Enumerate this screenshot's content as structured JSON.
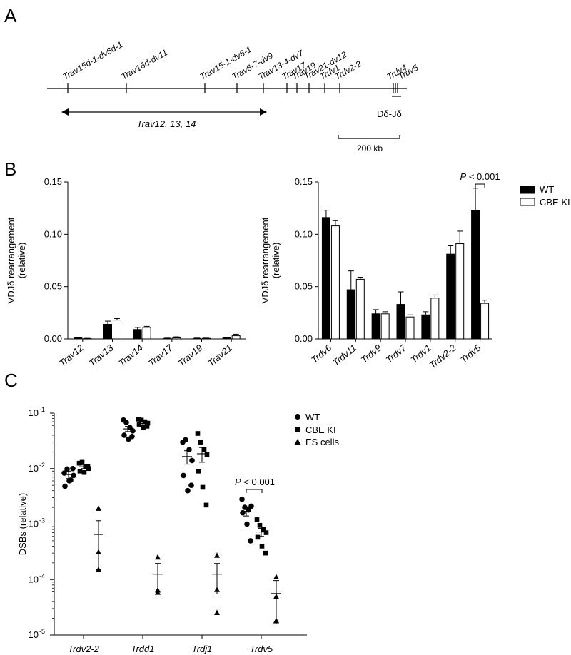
{
  "panel_labels": {
    "a": "A",
    "b": "B",
    "c": "C"
  },
  "panel_a": {
    "genes": [
      "Trav15d-1-dv6d-1",
      "Trav16d-dv11",
      "Trav15-1-dv6-1",
      "Trav6-7-dv9",
      "Trav13-4-dv7",
      "Trav17",
      "Trav19",
      "Trav21-dv12",
      "Trdv1",
      "Trdv2-2",
      "Trdv4",
      "Trdv5"
    ],
    "cluster_label": "Trav12, 13, 14",
    "dj_label": "Dδ-Jδ",
    "scale_label": "200 kb"
  },
  "legend_b": {
    "wt": "WT",
    "cbe": "CBE KI"
  },
  "legend_c": {
    "wt": "WT",
    "cbe": "CBE KI",
    "es": "ES cells"
  },
  "chart_data": [
    {
      "id": "B-left",
      "type": "bar",
      "ylabel": "VDJδ rearrangement (relative)",
      "ylabel_lines": [
        "VDJδ rearrangement",
        "(relative)"
      ],
      "ylim": [
        0,
        0.15
      ],
      "yticks": [
        "0.00",
        "0.05",
        "0.10",
        "0.15"
      ],
      "categories": [
        "Trav12",
        "Trav13",
        "Trav14",
        "Trav17",
        "Trav19",
        "Trav21"
      ],
      "series": [
        {
          "name": "WT",
          "values": [
            0.001,
            0.014,
            0.009,
            0.0005,
            0.0005,
            0.001
          ],
          "errors": [
            0.0005,
            0.003,
            0.002,
            0.0003,
            0.0003,
            0.0005
          ]
        },
        {
          "name": "CBE KI",
          "values": [
            0.0003,
            0.018,
            0.011,
            0.001,
            0.0005,
            0.003
          ],
          "errors": [
            0.0003,
            0.0015,
            0.001,
            0.001,
            0.0003,
            0.0015
          ]
        }
      ]
    },
    {
      "id": "B-right",
      "type": "bar",
      "ylabel": "VDJδ rearrangement (relative)",
      "ylabel_lines": [
        "VDJδ rearrangement",
        "(relative)"
      ],
      "ylim": [
        0,
        0.15
      ],
      "yticks": [
        "0.00",
        "0.05",
        "0.10",
        "0.15"
      ],
      "categories": [
        "Trdv6",
        "Trdv11",
        "Trdv9",
        "Trdv7",
        "Trdv1",
        "Trdv2-2",
        "Trdv5"
      ],
      "series": [
        {
          "name": "WT",
          "values": [
            0.116,
            0.047,
            0.024,
            0.033,
            0.023,
            0.081,
            0.123
          ],
          "errors": [
            0.007,
            0.018,
            0.004,
            0.012,
            0.003,
            0.008,
            0.021
          ]
        },
        {
          "name": "CBE KI",
          "values": [
            0.108,
            0.057,
            0.024,
            0.021,
            0.039,
            0.091,
            0.034
          ],
          "errors": [
            0.005,
            0.002,
            0.002,
            0.002,
            0.003,
            0.012,
            0.003
          ]
        }
      ],
      "annotation": {
        "p_letter": "P",
        "p_rest": " < 0.001",
        "category": "Trdv5"
      }
    },
    {
      "id": "C",
      "type": "scatter",
      "ylabel": "DSBs (relative)",
      "yscale": "log",
      "ylim": [
        1e-05,
        0.1
      ],
      "yticks": [
        {
          "base": "10",
          "exp": "-5"
        },
        {
          "base": "10",
          "exp": "-4"
        },
        {
          "base": "10",
          "exp": "-3"
        },
        {
          "base": "10",
          "exp": "-2"
        },
        {
          "base": "10",
          "exp": "-1"
        }
      ],
      "categories": [
        "Trdv2-2",
        "Trdd1",
        "Trdj1",
        "Trdv5"
      ],
      "groups": [
        {
          "name": "WT",
          "marker": "circle",
          "points": [
            [
              0.0083,
              0.0098,
              0.0062,
              0.0075,
              0.0048,
              0.006,
              0.01
            ],
            [
              0.075,
              0.068,
              0.055,
              0.048,
              0.04,
              0.034,
              0.038
            ],
            [
              0.03,
              0.033,
              0.022,
              0.014,
              0.0075,
              0.004,
              0.005
            ],
            [
              0.0028,
              0.002,
              0.0018,
              0.0021,
              0.0016,
              0.001,
              0.0005
            ]
          ],
          "mean": [
            0.0078,
            0.052,
            0.0165,
            0.0017
          ],
          "sem": [
            0.0012,
            0.0055,
            0.0045,
            0.0003
          ]
        },
        {
          "name": "CBE KI",
          "marker": "square",
          "points": [
            [
              0.0125,
              0.013,
              0.011,
              0.01,
              0.009,
              0.0085,
              0.011
            ],
            [
              0.078,
              0.075,
              0.07,
              0.066,
              0.063,
              0.055,
              0.058
            ],
            [
              0.043,
              0.03,
              0.022,
              0.018,
              0.009,
              0.0046,
              0.0022
            ],
            [
              0.0012,
              0.00095,
              0.0008,
              0.0007,
              0.00058,
              0.0004,
              0.0003
            ]
          ],
          "mean": [
            0.0108,
            0.065,
            0.0185,
            0.00072
          ],
          "sem": [
            0.0008,
            0.004,
            0.0055,
            0.00012
          ]
        },
        {
          "name": "ES cells",
          "marker": "triangle",
          "points": [
            [
              0.0019,
              0.00031,
              0.00015
            ],
            [
              0.00025,
              6.4e-05,
              5.8e-05
            ],
            [
              0.00027,
              6.5e-05,
              2.5e-05
            ],
            [
              0.00011,
              4.9e-05,
              1.8e-05
            ]
          ],
          "mean": [
            0.00065,
            0.000125,
            0.000125,
            5.6e-05
          ],
          "sem": [
            0.0005,
            7e-05,
            7e-05,
            4e-05
          ]
        }
      ],
      "annotation": {
        "p_letter": "P",
        "p_rest": " < 0.001",
        "category": "Trdv5"
      }
    }
  ]
}
